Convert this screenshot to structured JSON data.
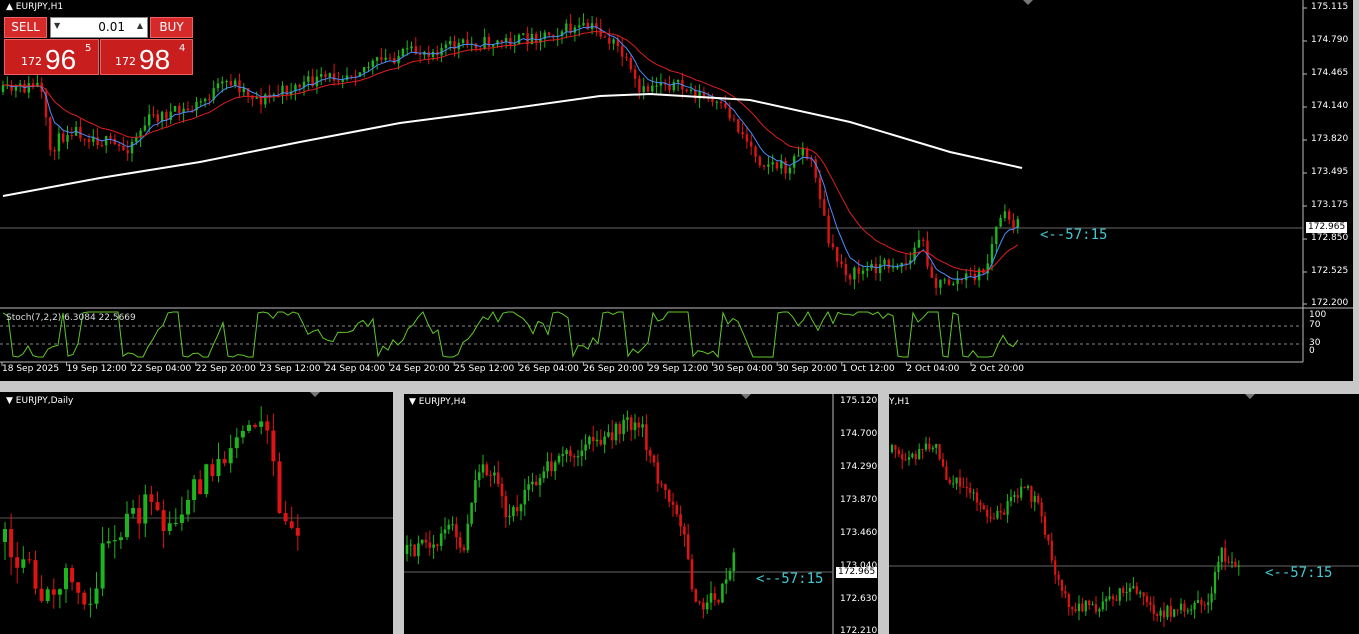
{
  "main_chart": {
    "title": "EURJPY,H1",
    "price_scale": [
      "175.115",
      "174.790",
      "174.465",
      "174.140",
      "173.820",
      "173.495",
      "173.175",
      "172.850",
      "172.525",
      "172.200"
    ],
    "current_price": "172.965",
    "countdown": "<--57:15",
    "indicator_label": "Stoch(7,2,2) 6.3084 22.5669",
    "indicator_scale": [
      "100",
      "70",
      "30",
      "0"
    ],
    "time_scale": [
      "18 Sep 2025",
      "19 Sep 12:00",
      "22 Sep 04:00",
      "22 Sep 20:00",
      "23 Sep 12:00",
      "24 Sep 04:00",
      "24 Sep 20:00",
      "25 Sep 12:00",
      "26 Sep 04:00",
      "26 Sep 20:00",
      "29 Sep 12:00",
      "30 Sep 04:00",
      "30 Sep 20:00",
      "1 Oct 12:00",
      "2 Oct 04:00",
      "2 Oct 20:00"
    ]
  },
  "trade_panel": {
    "sell_label": "SELL",
    "buy_label": "BUY",
    "lot_value": "0.01",
    "down_arrow": "▼",
    "up_arrow": "▲",
    "sell_price_small": "172",
    "sell_price_big": "96",
    "sell_price_sup": "5",
    "buy_price_small": "172",
    "buy_price_big": "98",
    "buy_price_sup": "4"
  },
  "daily_chart": {
    "title": "EURJPY,Daily"
  },
  "h4_chart": {
    "title": "EURJPY,H4",
    "price_scale": [
      "175.120",
      "174.700",
      "174.290",
      "173.870",
      "173.460",
      "173.040",
      "172.630",
      "172.210"
    ],
    "current_price": "172.965",
    "countdown": "<--57:15"
  },
  "h1_small_chart": {
    "title": "Y,H1",
    "countdown": "<--57:15"
  },
  "colors": {
    "bull": "#1eb41e",
    "bear": "#dc1414",
    "ma_fast": "#4a8cff",
    "ma_slow": "#e01e1e",
    "ma_long": "#ffffff",
    "stoch": "#5fc82a",
    "countdown": "#40c8d0"
  }
}
